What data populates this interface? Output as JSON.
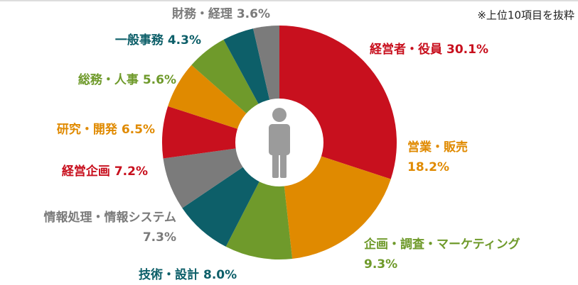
{
  "chart_data": {
    "type": "donut",
    "annotation": "※上位10項目を抜粋",
    "categories": [
      "経営者・役員",
      "営業・販売",
      "企画・調査・マーケティング",
      "技術・設計",
      "情報処理・情報システム",
      "経営企画",
      "研究・開発",
      "総務・人事",
      "一般事務",
      "財務・経理"
    ],
    "values": [
      30.1,
      18.2,
      9.3,
      8.0,
      7.3,
      7.2,
      6.5,
      5.6,
      4.3,
      3.6
    ],
    "value_labels": [
      "30.1%",
      "18.2%",
      "9.3%",
      "8.0%",
      "7.3%",
      "7.2%",
      "6.5%",
      "5.6%",
      "4.3%",
      "3.6%"
    ],
    "colors": [
      "#c8101e",
      "#e08a00",
      "#6f9a2b",
      "#0d5f69",
      "#7b7b7b",
      "#c8101e",
      "#e08a00",
      "#6f9a2b",
      "#0d5f69",
      "#7b7b7b"
    ]
  }
}
